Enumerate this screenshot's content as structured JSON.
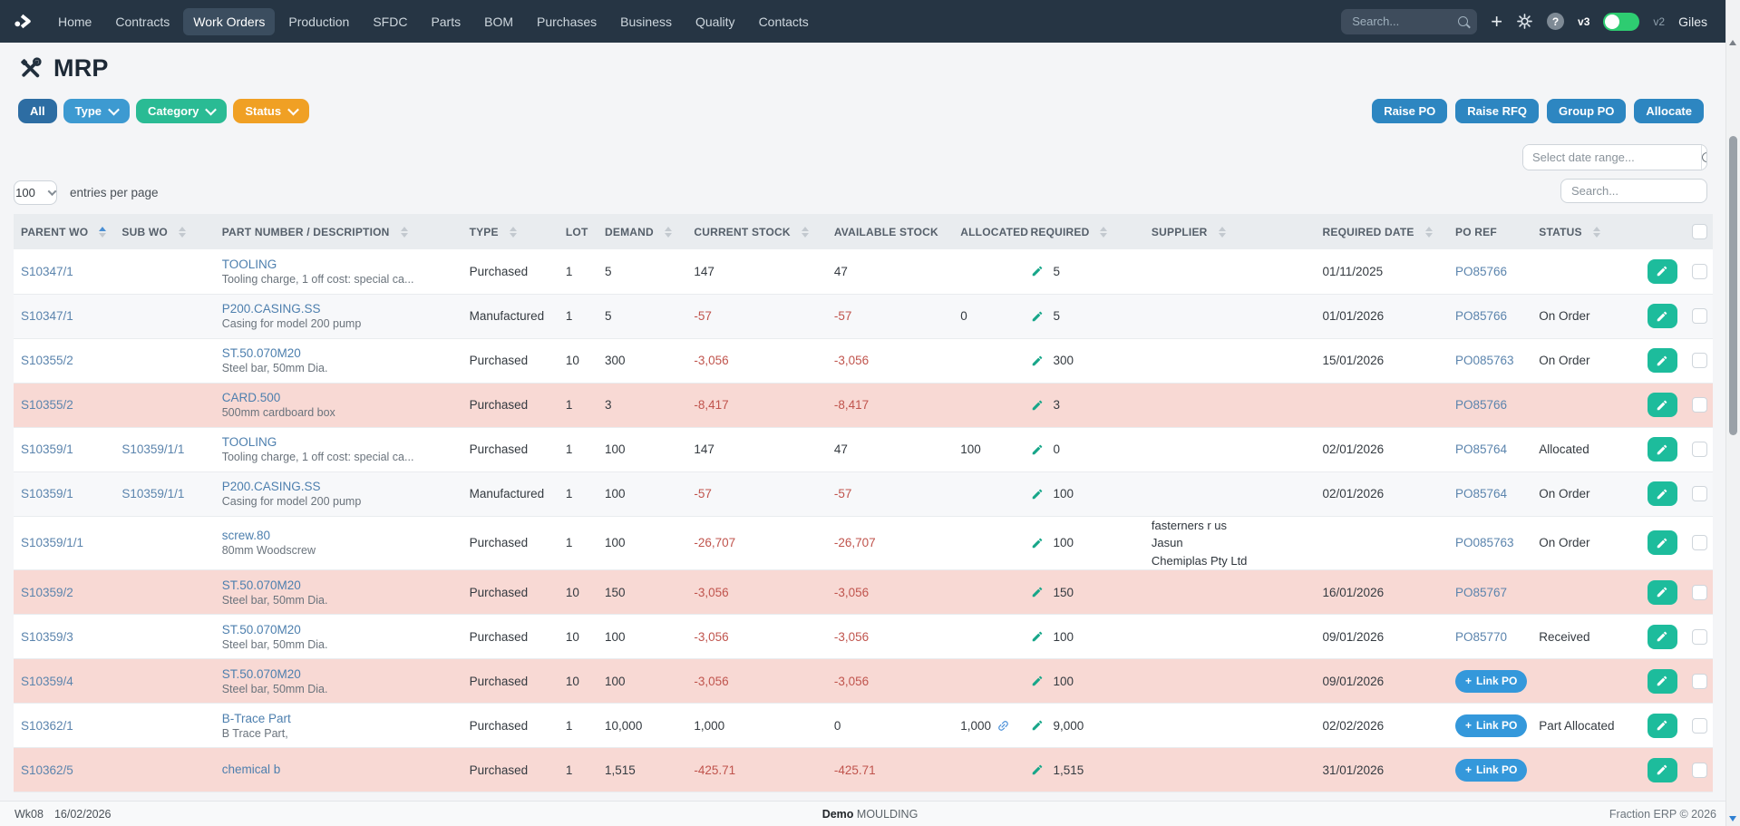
{
  "nav": {
    "items": [
      {
        "label": "Home",
        "active": false
      },
      {
        "label": "Contracts",
        "active": false
      },
      {
        "label": "Work Orders",
        "active": true
      },
      {
        "label": "Production",
        "active": false
      },
      {
        "label": "SFDC",
        "active": false
      },
      {
        "label": "Parts",
        "active": false
      },
      {
        "label": "BOM",
        "active": false
      },
      {
        "label": "Purchases",
        "active": false
      },
      {
        "label": "Business",
        "active": false
      },
      {
        "label": "Quality",
        "active": false
      },
      {
        "label": "Contacts",
        "active": false
      }
    ],
    "search_placeholder": "Search...",
    "version_left": "v3",
    "version_right": "v2",
    "user": "Giles"
  },
  "page": {
    "title": "MRP"
  },
  "filters": [
    {
      "label": "All",
      "color": "#2d6da3",
      "chevron": false
    },
    {
      "label": "Type",
      "color": "#3d9ad1",
      "chevron": true
    },
    {
      "label": "Category",
      "color": "#2abb94",
      "chevron": true
    },
    {
      "label": "Status",
      "color": "#f0a024",
      "chevron": true
    }
  ],
  "actions": [
    "Raise PO",
    "Raise RFQ",
    "Group PO",
    "Allocate"
  ],
  "controls": {
    "date_range_placeholder": "Select date range...",
    "table_search_placeholder": "Search...",
    "entries_value": "100",
    "entries_label": "entries per page"
  },
  "table": {
    "columns": [
      {
        "label": "PARENT WO",
        "sort": "asc"
      },
      {
        "label": "SUB WO",
        "sort": "both"
      },
      {
        "label": "PART NUMBER / DESCRIPTION",
        "sort": "both"
      },
      {
        "label": "TYPE",
        "sort": "both"
      },
      {
        "label": "LOT",
        "sort": null
      },
      {
        "label": "DEMAND",
        "sort": "both"
      },
      {
        "label": "CURRENT STOCK",
        "sort": "both"
      },
      {
        "label": "AVAILABLE STOCK",
        "sort": null
      },
      {
        "label": "ALLOCATED",
        "sort": null
      },
      {
        "label": "REQUIRED",
        "sort": "both"
      },
      {
        "label": "SUPPLIER",
        "sort": "both"
      },
      {
        "label": "REQUIRED DATE",
        "sort": "both"
      },
      {
        "label": "PO REF",
        "sort": null
      },
      {
        "label": "STATUS",
        "sort": "both"
      },
      {
        "label": "",
        "sort": null
      },
      {
        "label": "",
        "sort": null
      }
    ],
    "link_po_label": "Link PO",
    "rows": [
      {
        "parent_wo": "S10347/1",
        "sub_wo": "",
        "part": "TOOLING",
        "description": "Tooling charge, 1 off cost: special ca...",
        "type": "Purchased",
        "lot": "1",
        "demand": "5",
        "current_stock": "147",
        "available_stock": "47",
        "allocated": "",
        "allocated_link": false,
        "required": "5",
        "suppliers": [],
        "required_date": "01/11/2025",
        "po_ref": "PO85766",
        "po_button": false,
        "status": "",
        "highlight": false
      },
      {
        "parent_wo": "S10347/1",
        "sub_wo": "",
        "part": "P200.CASING.SS",
        "description": "Casing for model 200 pump",
        "type": "Manufactured",
        "lot": "1",
        "demand": "5",
        "current_stock": "-57",
        "available_stock": "-57",
        "allocated": "0",
        "allocated_link": false,
        "required": "5",
        "suppliers": [],
        "required_date": "01/01/2026",
        "po_ref": "PO85766",
        "po_button": false,
        "status": "On Order",
        "highlight": false
      },
      {
        "parent_wo": "S10355/2",
        "sub_wo": "",
        "part": "ST.50.070M20",
        "description": "Steel bar, 50mm Dia.",
        "type": "Purchased",
        "lot": "10",
        "demand": "300",
        "current_stock": "-3,056",
        "available_stock": "-3,056",
        "allocated": "",
        "allocated_link": false,
        "required": "300",
        "suppliers": [],
        "required_date": "15/01/2026",
        "po_ref": "PO085763",
        "po_button": false,
        "status": "On Order",
        "highlight": false
      },
      {
        "parent_wo": "S10355/2",
        "sub_wo": "",
        "part": "CARD.500",
        "description": "500mm cardboard box",
        "type": "Purchased",
        "lot": "1",
        "demand": "3",
        "current_stock": "-8,417",
        "available_stock": "-8,417",
        "allocated": "",
        "allocated_link": false,
        "required": "3",
        "suppliers": [],
        "required_date": "",
        "po_ref": "PO85766",
        "po_button": false,
        "status": "",
        "highlight": true
      },
      {
        "parent_wo": "S10359/1",
        "sub_wo": "S10359/1/1",
        "part": "TOOLING",
        "description": "Tooling charge, 1 off cost: special ca...",
        "type": "Purchased",
        "lot": "1",
        "demand": "100",
        "current_stock": "147",
        "available_stock": "47",
        "allocated": "100",
        "allocated_link": false,
        "required": "0",
        "suppliers": [],
        "required_date": "02/01/2026",
        "po_ref": "PO85764",
        "po_button": false,
        "status": "Allocated",
        "highlight": false
      },
      {
        "parent_wo": "S10359/1",
        "sub_wo": "S10359/1/1",
        "part": "P200.CASING.SS",
        "description": "Casing for model 200 pump",
        "type": "Manufactured",
        "lot": "1",
        "demand": "100",
        "current_stock": "-57",
        "available_stock": "-57",
        "allocated": "",
        "allocated_link": false,
        "required": "100",
        "suppliers": [],
        "required_date": "02/01/2026",
        "po_ref": "PO85764",
        "po_button": false,
        "status": "On Order",
        "highlight": false
      },
      {
        "parent_wo": "S10359/1/1",
        "sub_wo": "",
        "part": "screw.80",
        "description": "80mm Woodscrew",
        "type": "Purchased",
        "lot": "1",
        "demand": "100",
        "current_stock": "-26,707",
        "available_stock": "-26,707",
        "allocated": "",
        "allocated_link": false,
        "required": "100",
        "suppliers": [
          "fasterners r us",
          "Jasun",
          "Chemiplas Pty Ltd"
        ],
        "required_date": "",
        "po_ref": "PO085763",
        "po_button": false,
        "status": "On Order",
        "highlight": false
      },
      {
        "parent_wo": "S10359/2",
        "sub_wo": "",
        "part": "ST.50.070M20",
        "description": "Steel bar, 50mm Dia.",
        "type": "Purchased",
        "lot": "10",
        "demand": "150",
        "current_stock": "-3,056",
        "available_stock": "-3,056",
        "allocated": "",
        "allocated_link": false,
        "required": "150",
        "suppliers": [],
        "required_date": "16/01/2026",
        "po_ref": "PO85767",
        "po_button": false,
        "status": "",
        "highlight": true
      },
      {
        "parent_wo": "S10359/3",
        "sub_wo": "",
        "part": "ST.50.070M20",
        "description": "Steel bar, 50mm Dia.",
        "type": "Purchased",
        "lot": "10",
        "demand": "100",
        "current_stock": "-3,056",
        "available_stock": "-3,056",
        "allocated": "",
        "allocated_link": false,
        "required": "100",
        "suppliers": [],
        "required_date": "09/01/2026",
        "po_ref": "PO85770",
        "po_button": false,
        "status": "Received",
        "highlight": false
      },
      {
        "parent_wo": "S10359/4",
        "sub_wo": "",
        "part": "ST.50.070M20",
        "description": "Steel bar, 50mm Dia.",
        "type": "Purchased",
        "lot": "10",
        "demand": "100",
        "current_stock": "-3,056",
        "available_stock": "-3,056",
        "allocated": "",
        "allocated_link": false,
        "required": "100",
        "suppliers": [],
        "required_date": "09/01/2026",
        "po_ref": "",
        "po_button": true,
        "status": "",
        "highlight": true
      },
      {
        "parent_wo": "S10362/1",
        "sub_wo": "",
        "part": "B-Trace Part",
        "description": "B Trace Part,",
        "type": "Purchased",
        "lot": "1",
        "demand": "10,000",
        "current_stock": "1,000",
        "available_stock": "0",
        "allocated": "1,000",
        "allocated_link": true,
        "required": "9,000",
        "suppliers": [],
        "required_date": "02/02/2026",
        "po_ref": "",
        "po_button": true,
        "status": "Part Allocated",
        "highlight": false
      },
      {
        "parent_wo": "S10362/5",
        "sub_wo": "",
        "part": "chemical b",
        "description": "",
        "type": "Purchased",
        "lot": "1",
        "demand": "1,515",
        "current_stock": "-425.71",
        "available_stock": "-425.71",
        "allocated": "",
        "allocated_link": false,
        "required": "1,515",
        "suppliers": [],
        "required_date": "31/01/2026",
        "po_ref": "",
        "po_button": true,
        "status": "",
        "highlight": true
      }
    ]
  },
  "footer": {
    "week": "Wk08",
    "date": "16/02/2026",
    "env": "Demo",
    "site": "MOULDING",
    "copyright": "Fraction ERP © 2026"
  },
  "colors": {
    "nav_bg": "#263544",
    "filter_all": "#2d6da3",
    "filter_type": "#3d9ad1",
    "filter_category": "#2abb94",
    "filter_status": "#f0a024",
    "action_blue": "#2d86c1",
    "link_po_blue": "#3498db",
    "edit_green": "#1dbc9c",
    "link_text_blue": "#5b84ad",
    "negative_red": "#c0544d",
    "highlight_pink": "#f8d9d4",
    "toggle_green": "#2ecc71"
  }
}
